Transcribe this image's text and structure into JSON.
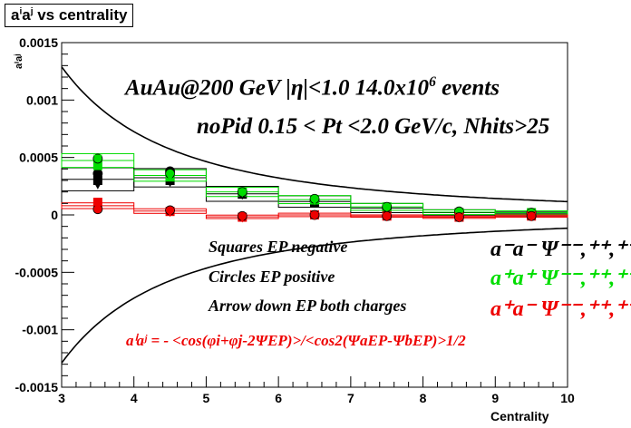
{
  "chart_data": {
    "type": "scatter",
    "title": "aⁱaʲ vs centrality",
    "title_base": "a",
    "title_sup1": "i",
    "title_mid": "a",
    "title_sup2": "j",
    "title_rest": " vs centrality",
    "xlabel": "Centrality",
    "ylabel": "aⁱaʲ",
    "xlim": [
      3,
      10
    ],
    "ylim": [
      -0.0015,
      0.0015
    ],
    "xticks": [
      "3",
      "4",
      "5",
      "6",
      "7",
      "8",
      "9",
      "10"
    ],
    "yticks": [
      "-0.0015",
      "-0.001",
      "-0.0005",
      "0",
      "0.0005",
      "0.001",
      "0.0015"
    ],
    "grid": false,
    "legend_position": "right",
    "annotations": {
      "line1_pre": "AuAu@200 GeV |η|<1.0 14.0x10",
      "line1_sup": "6",
      "line1_post": " events",
      "line2": "noPid 0.15 < Pt <2.0 GeV/c, Nhits>25",
      "squares": "Squares EP negative",
      "circles": "Circles EP positive",
      "arrows": "Arrow down EP both charges",
      "formula": "aⁱaʲ = - <cos(φi+φj-2ΨEP)>/<cos2(ΨaEP-ΨbEP)>1/2"
    },
    "legend": [
      {
        "label": "a⁻a⁻  Ψ⁻⁻,⁺⁺,⁺⁻",
        "color": "#000000"
      },
      {
        "label": "a⁺a⁺  Ψ⁻⁻,⁺⁺,⁺⁻",
        "color": "#00dd00"
      },
      {
        "label": "a⁺a⁻  Ψ⁻⁻,⁺⁺,⁺⁻",
        "color": "#ee0000"
      }
    ],
    "curves": [
      {
        "name": "upper",
        "formula": "k/x^2",
        "k": 0.0116
      },
      {
        "name": "lower",
        "formula": "-k/x^2",
        "k": 0.0116
      }
    ],
    "series": [
      {
        "name": "a-a- (black)",
        "color": "#000000",
        "x": [
          3.5,
          4.5,
          5.5,
          6.5,
          7.5,
          8.5,
          9.5
        ],
        "squares": [
          0.0003,
          0.0003,
          0.00018,
          0.00011,
          6e-05,
          2e-05,
          1e-05
        ],
        "circles": [
          0.00036,
          0.00038,
          0.00019,
          0.00012,
          6e-05,
          2e-05,
          1e-05
        ],
        "arrows": [
          0.00027,
          0.00029,
          0.00018,
          0.00012,
          6e-05,
          2e-05,
          1e-05
        ],
        "bands": [
          0.0002,
          0.00016,
          0.00013,
          0.0001,
          8e-05,
          5e-05,
          4e-05
        ]
      },
      {
        "name": "a+a+ (green)",
        "color": "#00dd00",
        "x": [
          3.5,
          4.5,
          5.5,
          6.5,
          7.5,
          8.5,
          9.5
        ],
        "squares": [
          0.00043,
          0.00033,
          0.0002,
          0.00013,
          7e-05,
          2e-05,
          2e-05
        ],
        "circles": [
          0.00049,
          0.00036,
          0.0002,
          0.00014,
          7e-05,
          3e-05,
          2e-05
        ],
        "arrows": [
          0.0005,
          0.00034,
          0.0002,
          0.00013,
          7e-05,
          2e-05,
          2e-05
        ],
        "bands": [
          0.00012,
          0.0001,
          8e-05,
          7e-05,
          6e-05,
          4e-05,
          3e-05
        ]
      },
      {
        "name": "a+a- (red)",
        "color": "#ee0000",
        "x": [
          3.5,
          4.5,
          5.5,
          6.5,
          7.5,
          8.5,
          9.5
        ],
        "squares": [
          0.00011,
          3e-05,
          -2e-05,
          0.0,
          -1e-05,
          -2e-05,
          -1e-05
        ],
        "circles": [
          5e-05,
          4e-05,
          -1e-05,
          0.0,
          -1e-05,
          -2e-05,
          -1e-05
        ],
        "arrows": [
          8e-05,
          3e-05,
          -2e-05,
          0.0,
          -1e-05,
          -2e-05,
          -1e-05
        ],
        "bands": [
          5e-05,
          4e-05,
          3e-05,
          3e-05,
          2e-05,
          2e-05,
          2e-05
        ]
      }
    ]
  }
}
